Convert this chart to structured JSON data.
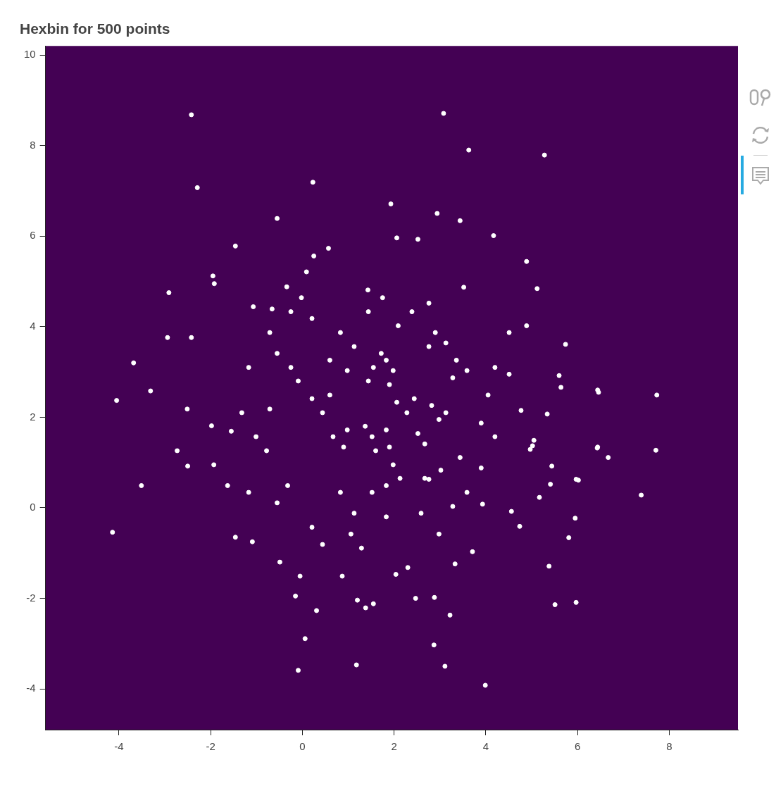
{
  "chart_data": {
    "type": "scatter",
    "title": "Hexbin for 500 points",
    "xlim": [
      -5.6,
      9.5
    ],
    "ylim": [
      -4.9,
      10.2
    ],
    "xticks": [
      -4,
      -2,
      0,
      2,
      4,
      6,
      8
    ],
    "yticks": [
      -4,
      -2,
      0,
      2,
      4,
      6,
      8,
      10
    ],
    "grid": false,
    "legend": false,
    "marker": "circle",
    "series": [
      {
        "color": "#ffffff",
        "x": [
          -2.42,
          3.08,
          3.63,
          5.28,
          0.23,
          -2.29,
          -0.55,
          -1.46,
          1.93,
          2.94,
          3.44,
          2.06,
          2.52,
          4.17,
          4.89,
          -1.95,
          -1.92,
          -2.91,
          0.09,
          0.57,
          0.25,
          -1.07,
          -0.66,
          -0.34,
          1.43,
          2.76,
          3.52,
          5.12,
          4.89,
          5.74,
          -2.94,
          -2.42,
          -3.68,
          -3.31,
          -4.05,
          -2.73,
          -2.51,
          -1.98,
          -1.55,
          -2.5,
          -3.51,
          -4.14,
          -1.46,
          -1.09,
          -0.49,
          -0.05,
          -0.15,
          0.31,
          0.06,
          -0.09,
          1.18,
          1.2,
          1.38,
          1.55,
          0.87,
          2.04,
          2.88,
          3.22,
          2.87,
          3.11,
          3.99,
          5.51,
          5.97,
          5.38,
          5.95,
          5.81,
          7.39,
          7.71,
          7.73,
          6.44,
          6.67,
          6.02,
          6.44,
          5.6,
          3.02,
          2.76,
          5.44,
          5.41,
          5.97,
          5.17,
          4.56,
          3.93,
          4.74,
          3.71,
          3.33,
          2.3,
          2.47,
          5.02,
          5.05,
          4.97,
          4.77,
          5.34,
          5.64,
          6.46,
          6.43,
          1.55,
          1.83,
          1.44,
          1.9,
          1.72,
          1.98,
          1.52,
          1.83,
          1.6,
          1.9,
          1.37,
          2.06,
          2.28,
          2.44,
          2.82,
          3.13,
          2.98,
          2.9,
          3.13,
          2.76,
          3.36,
          3.59,
          3.28,
          2.52,
          2.67,
          0.21,
          0.44,
          0.6,
          0.67,
          0.9,
          0.98,
          1.98,
          2.13,
          1.83,
          0.83,
          1.13,
          0.6,
          0.98,
          -0.02,
          -0.25,
          0.21,
          -0.25,
          -0.09,
          -0.71,
          -1.01,
          -0.78,
          -0.32,
          -0.55,
          0.21,
          0.44,
          1.06,
          1.29,
          0.83,
          1.13,
          1.52,
          1.83,
          2.59,
          2.98,
          3.28,
          3.59,
          3.9,
          4.2,
          4.05,
          4.2,
          4.51,
          4.51,
          1.75,
          1.44,
          2.09,
          2.39,
          -0.71,
          -0.55,
          -1.17,
          -1.32,
          -1.93,
          -1.63,
          -1.17,
          3.9,
          3.44,
          2.67
        ],
        "values": [
          8.68,
          8.71,
          7.9,
          7.79,
          7.19,
          7.07,
          6.39,
          5.78,
          6.71,
          6.5,
          6.34,
          5.96,
          5.93,
          6.01,
          5.44,
          5.12,
          4.95,
          4.75,
          5.21,
          5.73,
          5.56,
          4.44,
          4.39,
          4.88,
          4.81,
          4.52,
          4.87,
          4.84,
          4.02,
          3.61,
          3.76,
          3.76,
          3.2,
          2.58,
          2.37,
          1.26,
          2.18,
          1.81,
          1.69,
          0.92,
          0.49,
          -0.54,
          -0.65,
          -0.75,
          -1.2,
          -1.51,
          -1.95,
          -2.27,
          -2.89,
          -3.59,
          -3.47,
          -2.04,
          -2.21,
          -2.12,
          -1.51,
          -1.47,
          -1.98,
          -2.37,
          -3.03,
          -3.5,
          -3.92,
          -2.14,
          -2.09,
          -1.29,
          -0.23,
          -0.66,
          0.28,
          1.27,
          2.49,
          2.6,
          1.11,
          0.61,
          1.34,
          2.92,
          0.83,
          0.63,
          0.92,
          0.52,
          0.63,
          0.23,
          -0.08,
          0.08,
          -0.41,
          -0.97,
          -1.24,
          -1.32,
          -2.0,
          1.37,
          1.49,
          1.29,
          2.15,
          2.07,
          2.66,
          2.55,
          1.32,
          3.1,
          3.26,
          2.8,
          2.72,
          3.41,
          3.03,
          1.57,
          1.72,
          1.26,
          1.34,
          1.8,
          2.33,
          2.1,
          2.41,
          2.26,
          2.1,
          1.95,
          3.87,
          3.64,
          3.56,
          3.26,
          3.03,
          2.87,
          1.64,
          1.41,
          2.41,
          2.1,
          2.49,
          1.57,
          1.34,
          1.72,
          0.95,
          0.65,
          0.49,
          3.87,
          3.56,
          3.26,
          3.03,
          4.64,
          4.33,
          4.18,
          3.1,
          2.8,
          2.18,
          1.57,
          1.26,
          0.49,
          0.11,
          -0.43,
          -0.81,
          -0.58,
          -0.89,
          0.34,
          -0.12,
          0.34,
          -0.2,
          -0.12,
          -0.58,
          0.03,
          0.34,
          1.87,
          1.57,
          2.49,
          3.1,
          2.95,
          3.87,
          4.64,
          4.33,
          4.02,
          4.33,
          3.87,
          3.41,
          3.1,
          2.1,
          0.95,
          0.49,
          0.34,
          0.88,
          1.11,
          0.65
        ]
      }
    ]
  }
}
